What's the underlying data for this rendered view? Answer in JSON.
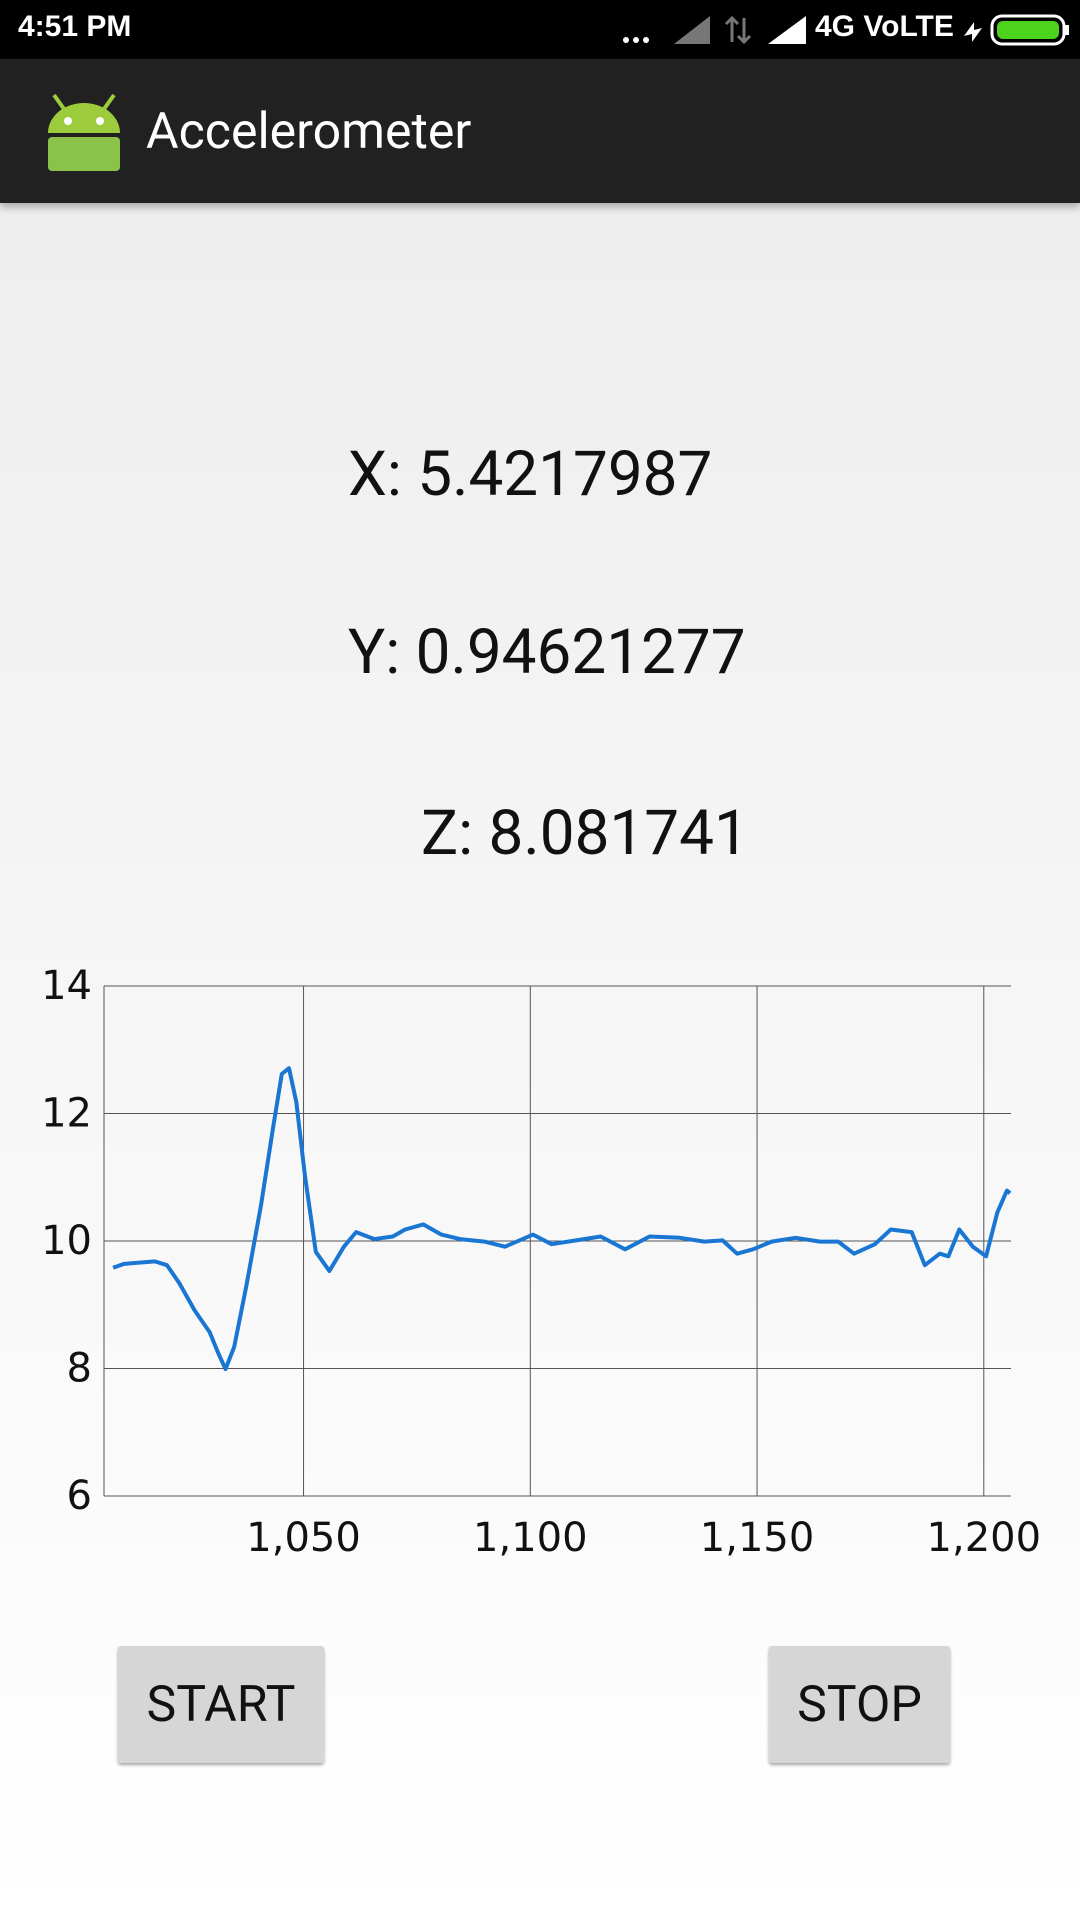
{
  "status_bar": {
    "time": "4:51 PM",
    "network": "4G VoLTE"
  },
  "app_bar": {
    "title": "Accelerometer"
  },
  "readings": {
    "x": "X: 5.4217987",
    "y": "Y: 0.94621277",
    "z": "Z: 8.081741"
  },
  "chart_data": {
    "type": "line",
    "x": [
      1008,
      1010.4,
      1017.2,
      1019.9,
      1022.6,
      1026,
      1029.3,
      1031.2,
      1032.8,
      1034.7,
      1037.4,
      1040.6,
      1043.3,
      1045.2,
      1046.8,
      1048.4,
      1050.3,
      1052.7,
      1055.7,
      1058.9,
      1061.6,
      1065.6,
      1069.7,
      1072.4,
      1076.4,
      1080.4,
      1084.5,
      1089.9,
      1094.4,
      1100.6,
      1104.7,
      1110.1,
      1115.5,
      1120.9,
      1126.3,
      1133,
      1138.4,
      1142.4,
      1145.6,
      1149.1,
      1153.2,
      1158.5,
      1163.9,
      1167.9,
      1171.4,
      1176,
      1179.5,
      1184.1,
      1187,
      1190.3,
      1192.2,
      1194.6,
      1197.6,
      1200.5,
      1203,
      1205.1,
      1205.8
    ],
    "values": [
      9.58,
      9.64,
      9.68,
      9.62,
      9.34,
      8.91,
      8.57,
      8.24,
      7.99,
      8.34,
      9.3,
      10.55,
      11.79,
      12.62,
      12.71,
      12.18,
      11.03,
      9.83,
      9.53,
      9.91,
      10.14,
      10.03,
      10.07,
      10.18,
      10.26,
      10.1,
      10.03,
      9.99,
      9.91,
      10.1,
      9.95,
      10.01,
      10.07,
      9.87,
      10.07,
      10.05,
      9.99,
      10.01,
      9.8,
      9.87,
      9.99,
      10.05,
      9.99,
      9.99,
      9.8,
      9.95,
      10.18,
      10.14,
      9.62,
      9.8,
      9.76,
      10.18,
      9.91,
      9.76,
      10.45,
      10.79,
      10.75
    ],
    "color": "#1976d2",
    "xlim": [
      1006,
      1206
    ],
    "xticks": [
      {
        "value": 1050,
        "label": "1,050"
      },
      {
        "value": 1100,
        "label": "1,100"
      },
      {
        "value": 1150,
        "label": "1,150"
      },
      {
        "value": 1200,
        "label": "1,200"
      }
    ],
    "ylim": [
      6,
      14
    ],
    "yticks": [
      6,
      8,
      10,
      12,
      14
    ],
    "grid": true
  },
  "buttons": {
    "start": "START",
    "stop": "STOP"
  }
}
